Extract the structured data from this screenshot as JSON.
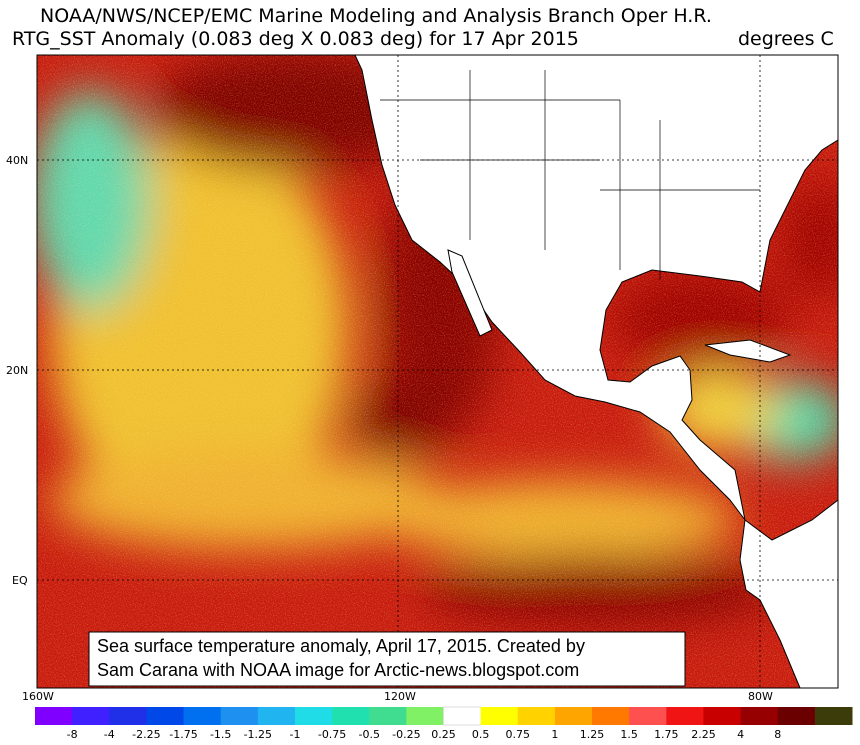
{
  "header": {
    "line1": "NOAA/NWS/NCEP/EMC Marine Modeling and Analysis Branch Oper H.R.",
    "line2": "RTG_SST Anomaly (0.083 deg X 0.083 deg) for 17 Apr 2015",
    "units": "degrees C"
  },
  "map": {
    "lat_labels": [
      "40N",
      "20N",
      "EQ"
    ],
    "lon_labels": [
      "160W",
      "120W",
      "80W"
    ],
    "annotation": [
      "Sea surface temperature anomaly, April 17, 2015. Created by",
      "Sam Carana with NOAA image for Arctic-news.blogspot.com"
    ]
  },
  "colorbar": {
    "labels": [
      "-8",
      "-4",
      "-2.25",
      "-1.75",
      "-1.5",
      "-1.25",
      "-1",
      "-0.75",
      "-0.5",
      "-0.25",
      "0.25",
      "0.5",
      "0.75",
      "1",
      "1.25",
      "1.5",
      "1.75",
      "2.25",
      "4",
      "8"
    ],
    "colors": [
      "#8000ff",
      "#4020ff",
      "#2030e8",
      "#0048e8",
      "#0070f0",
      "#1e90f0",
      "#20b4f0",
      "#20dce6",
      "#20e0b0",
      "#40dc90",
      "#80f064",
      "#ffffff",
      "#ffff00",
      "#ffd200",
      "#ffa500",
      "#ff7800",
      "#ff5050",
      "#f01414",
      "#c80000",
      "#960000",
      "#6a0000",
      "#3c3c0a"
    ]
  }
}
